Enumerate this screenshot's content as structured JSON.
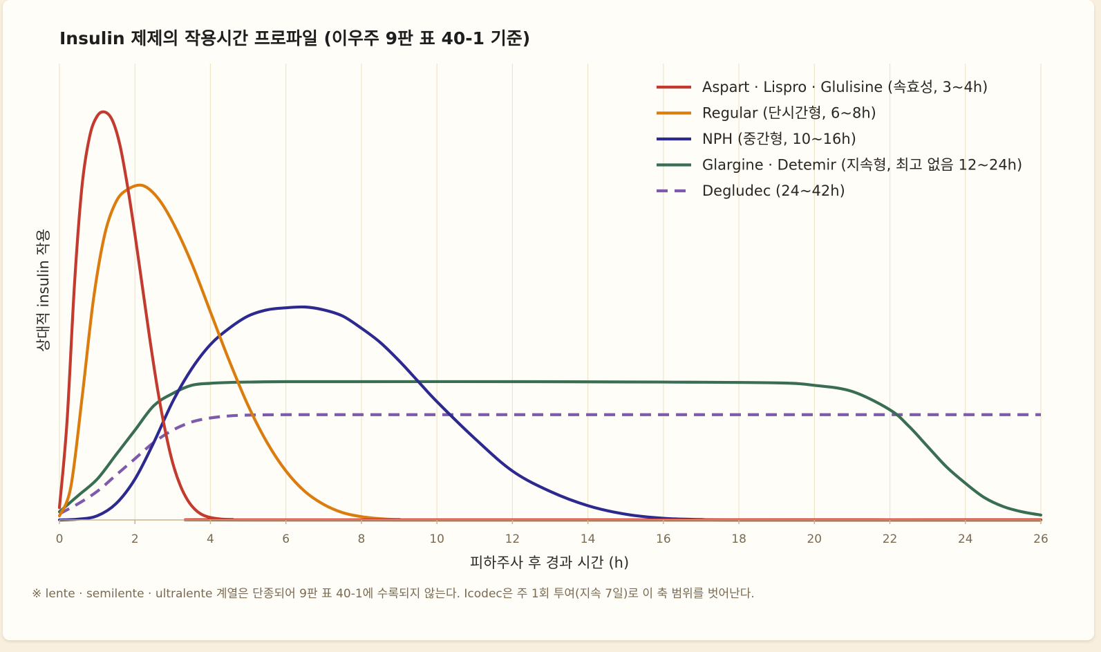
{
  "chart_data": {
    "type": "line",
    "title": "Insulin 제제의 작용시간 프로파일 (이우주 9판 표 40-1 기준)",
    "xlabel": "피하주사 후 경과 시간 (h)",
    "ylabel": "상대적 insulin 작용",
    "xlim": [
      0,
      26
    ],
    "ylim": [
      0,
      1
    ],
    "xticks": [
      0,
      2,
      4,
      6,
      8,
      10,
      12,
      14,
      16,
      18,
      20,
      22,
      24,
      26
    ],
    "grid": "vertical",
    "legend_position": "top-right",
    "series": [
      {
        "name": "Aspart · Lispro · Glulisine (속효성, 3~4h)",
        "color": "#c23b2e",
        "dash": false,
        "x": [
          0,
          0.2,
          0.4,
          0.6,
          0.8,
          1.0,
          1.2,
          1.4,
          1.6,
          1.8,
          2.0,
          2.2,
          2.4,
          2.6,
          2.8,
          3.0,
          3.2,
          3.4,
          3.6,
          3.8,
          4.0,
          4.3,
          4.6,
          5.0,
          26
        ],
        "y": [
          0.03,
          0.24,
          0.58,
          0.82,
          0.94,
          0.99,
          1.0,
          0.98,
          0.92,
          0.82,
          0.7,
          0.57,
          0.44,
          0.32,
          0.22,
          0.14,
          0.085,
          0.048,
          0.025,
          0.012,
          0.006,
          0.002,
          0.001,
          0.0,
          0.0
        ]
      },
      {
        "name": "Regular (단시간형, 6~8h)",
        "color": "#da7d0e",
        "dash": false,
        "x": [
          0,
          0.3,
          0.6,
          0.9,
          1.2,
          1.5,
          1.8,
          2.2,
          2.6,
          3.0,
          3.5,
          4.0,
          4.5,
          5.0,
          5.5,
          6.0,
          6.5,
          7.0,
          7.5,
          8.0,
          8.5,
          9.0,
          10,
          26
        ],
        "y": [
          0.01,
          0.08,
          0.3,
          0.54,
          0.7,
          0.78,
          0.81,
          0.82,
          0.79,
          0.73,
          0.63,
          0.51,
          0.39,
          0.28,
          0.19,
          0.12,
          0.07,
          0.038,
          0.018,
          0.008,
          0.003,
          0.001,
          0.0,
          0.0
        ]
      },
      {
        "name": "NPH (중간형, 10~16h)",
        "color": "#2c2a8f",
        "dash": false,
        "x": [
          0,
          0.5,
          1.0,
          1.5,
          2.0,
          2.5,
          3.0,
          3.5,
          4.0,
          4.5,
          5.0,
          5.5,
          6.0,
          6.5,
          7.0,
          7.5,
          8.0,
          8.5,
          9.0,
          9.5,
          10.0,
          11,
          12,
          13,
          14,
          15,
          16,
          17,
          18,
          26
        ],
        "y": [
          0.0,
          0.002,
          0.01,
          0.04,
          0.1,
          0.19,
          0.29,
          0.37,
          0.43,
          0.47,
          0.5,
          0.515,
          0.52,
          0.522,
          0.515,
          0.5,
          0.47,
          0.435,
          0.39,
          0.34,
          0.29,
          0.2,
          0.12,
          0.07,
          0.035,
          0.014,
          0.004,
          0.001,
          0.0,
          0.0
        ]
      },
      {
        "name": "Glargine · Detemir (지속형, 최고 없음 12~24h)",
        "color": "#3a6e52",
        "dash": false,
        "x": [
          0,
          0.5,
          1.0,
          1.5,
          2.0,
          2.5,
          3.0,
          3.5,
          4.0,
          4.5,
          5.0,
          6.0,
          8.0,
          12.0,
          16.0,
          19.0,
          20.0,
          21.0,
          22.0,
          22.5,
          23.0,
          23.5,
          24.0,
          24.5,
          25.0,
          25.5,
          26.0
        ],
        "y": [
          0.02,
          0.06,
          0.1,
          0.16,
          0.22,
          0.28,
          0.31,
          0.33,
          0.335,
          0.337,
          0.338,
          0.339,
          0.339,
          0.339,
          0.338,
          0.336,
          0.33,
          0.315,
          0.27,
          0.23,
          0.18,
          0.13,
          0.09,
          0.055,
          0.033,
          0.02,
          0.012
        ]
      },
      {
        "name": "Degludec (24~42h)",
        "color": "#7d5aaa",
        "dash": true,
        "x": [
          0,
          0.5,
          1.0,
          1.5,
          2.0,
          2.5,
          3.0,
          3.5,
          4.0,
          4.5,
          5.0,
          6.0,
          8.0,
          12.0,
          18.0,
          26.0
        ],
        "y": [
          0.015,
          0.04,
          0.07,
          0.11,
          0.15,
          0.19,
          0.22,
          0.24,
          0.25,
          0.255,
          0.257,
          0.258,
          0.258,
          0.258,
          0.258,
          0.258
        ]
      }
    ],
    "footnote": "※ lente · semilente · ultralente 계열은 단종되어 9판 표 40-1에 수록되지 않는다.  Icodec은 주 1회 투여(지속 7일)로 이 축 범위를 벗어난다."
  }
}
